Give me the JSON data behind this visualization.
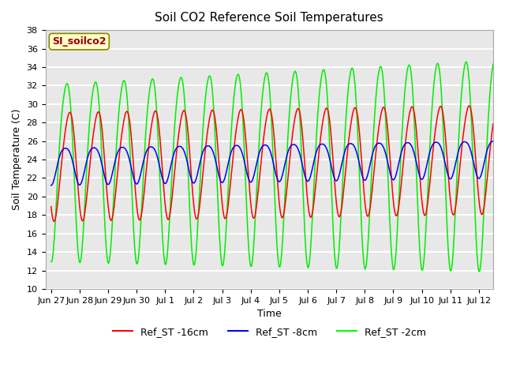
{
  "title": "Soil CO2 Reference Soil Temperatures",
  "xlabel": "Time",
  "ylabel": "Soil Temperature (C)",
  "ylim": [
    10,
    38
  ],
  "yticks": [
    10,
    12,
    14,
    16,
    18,
    20,
    22,
    24,
    26,
    28,
    30,
    32,
    34,
    36,
    38
  ],
  "xtick_labels": [
    "Jun 27",
    "Jun 28",
    "Jun 29",
    "Jun 30",
    "Jul 1",
    "Jul 2",
    "Jul 3",
    "Jul 4",
    "Jul 5",
    "Jul 6",
    "Jul 7",
    "Jul 8",
    "Jul 9",
    "Jul 10",
    "Jul 11",
    "Jul 12"
  ],
  "legend_labels": [
    "Ref_ST -16cm",
    "Ref_ST -8cm",
    "Ref_ST -2cm"
  ],
  "legend_colors": [
    "red",
    "blue",
    "lime"
  ],
  "line_colors": [
    "red",
    "blue",
    "#00ee00"
  ],
  "annotation_text": "SI_soilco2",
  "annotation_color": "#990000",
  "annotation_bg": "#ffffcc",
  "background_color": "#e8e8e8",
  "grid_color": "white",
  "num_days": 15.5,
  "points_per_day": 96
}
